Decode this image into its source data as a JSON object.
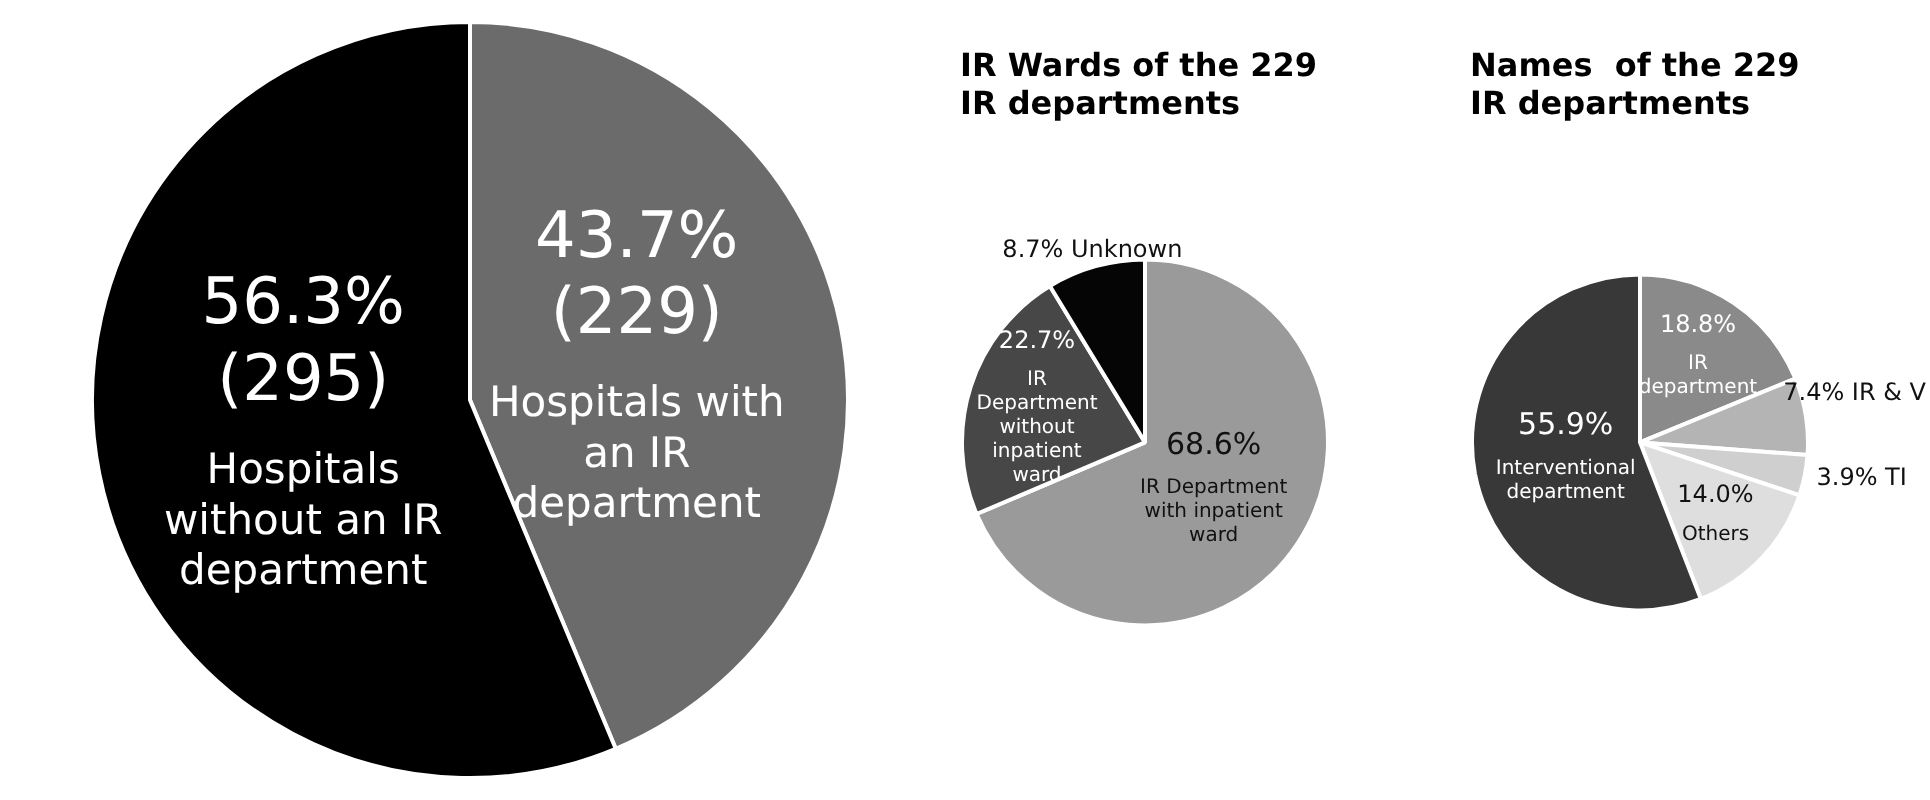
{
  "chart_data": [
    {
      "type": "pie",
      "categories": [
        "Hospitals with an IR department",
        "Hospitals without an IR department"
      ],
      "values": [
        43.7,
        56.3
      ],
      "colors": [
        "#6b6b6b",
        "#000000"
      ],
      "value_labels": [
        "43.7%\n(229)",
        "56.3%\n(295)"
      ]
    },
    {
      "type": "pie",
      "title": "IR Wards of the 229\nIR departments",
      "categories": [
        "IR Department with inpatient ward",
        "IR Department without inpatient ward",
        "Unknown"
      ],
      "values": [
        68.6,
        22.7,
        8.7
      ],
      "colors": [
        "#9a9a9a",
        "#474747",
        "#050505"
      ],
      "value_labels": [
        "68.6%",
        "22.7%",
        "8.7%"
      ]
    },
    {
      "type": "pie",
      "title": "Names  of the 229\nIR departments",
      "categories": [
        "IR department",
        "IR & V",
        "TI",
        "Others",
        "Interventional department"
      ],
      "values": [
        18.8,
        7.4,
        3.9,
        14.0,
        55.9
      ],
      "colors": [
        "#8a8a8a",
        "#b4b4b4",
        "#cfcfcf",
        "#dedede",
        "#383838"
      ],
      "value_labels": [
        "18.8%",
        "7.4%",
        "3.9%",
        "14.0%",
        "55.9%"
      ]
    }
  ]
}
